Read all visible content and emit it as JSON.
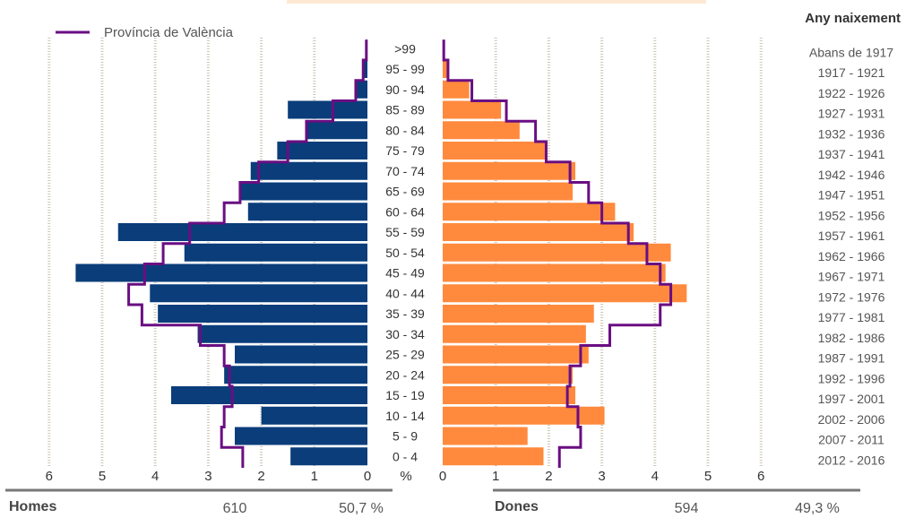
{
  "chart_data": {
    "type": "bar",
    "orientation": "horizontal",
    "subtype": "population-pyramid",
    "age_groups": [
      "0 - 4",
      "5 - 9",
      "10 - 14",
      "15 - 19",
      "20 - 24",
      "25 - 29",
      "30 - 34",
      "35 - 39",
      "40 - 44",
      "45 - 49",
      "50 - 54",
      "55 - 59",
      "60 - 64",
      "65 - 69",
      "70 - 74",
      "75 - 79",
      "80 - 84",
      "85 - 89",
      "90 - 94",
      "95 - 99",
      ">99"
    ],
    "birth_years": [
      "2012 - 2016",
      "2007 - 2011",
      "2002 - 2006",
      "1997 - 2001",
      "1992 - 1996",
      "1987 - 1991",
      "1982 - 1986",
      "1977 - 1981",
      "1972 - 1976",
      "1967 - 1971",
      "1962 - 1966",
      "1957 - 1961",
      "1952 - 1956",
      "1947 - 1951",
      "1942 - 1946",
      "1937 - 1941",
      "1932 - 1936",
      "1927 - 1931",
      "1922 - 1926",
      "1917 - 1921",
      "Abans de 1917"
    ],
    "series": [
      {
        "name": "Homes",
        "color": "#0a3d7a",
        "values": [
          1.45,
          2.5,
          2.0,
          3.7,
          2.7,
          2.5,
          3.2,
          3.95,
          4.1,
          5.5,
          3.45,
          4.7,
          2.25,
          2.4,
          2.2,
          1.7,
          1.15,
          1.5,
          0.2,
          0.1,
          0.02
        ]
      },
      {
        "name": "Dones",
        "color": "#ff8a3d",
        "values": [
          1.9,
          1.6,
          3.05,
          2.5,
          2.45,
          2.75,
          2.7,
          2.85,
          4.6,
          4.2,
          4.3,
          3.6,
          3.25,
          2.45,
          2.5,
          1.95,
          1.45,
          1.1,
          0.5,
          0.1,
          0.02
        ]
      }
    ],
    "reference": {
      "name": "Província de València",
      "color": "#6a0e82",
      "male": [
        2.35,
        2.75,
        2.7,
        2.55,
        2.6,
        2.7,
        3.15,
        4.25,
        4.5,
        4.2,
        3.85,
        3.35,
        2.7,
        2.4,
        2.05,
        1.5,
        1.15,
        0.65,
        0.22,
        0.08,
        0.02
      ],
      "female": [
        2.2,
        2.6,
        2.55,
        2.35,
        2.4,
        2.6,
        3.15,
        4.1,
        4.3,
        4.1,
        3.85,
        3.5,
        3.0,
        2.75,
        2.4,
        1.95,
        1.75,
        1.2,
        0.55,
        0.1,
        0.02
      ]
    },
    "x_ticks_left": [
      "6",
      "5",
      "4",
      "3",
      "2",
      "1",
      "0"
    ],
    "x_ticks_right": [
      "0",
      "1",
      "2",
      "3",
      "4",
      "5",
      "6"
    ],
    "x_unit": "%",
    "xlim": [
      0,
      6
    ],
    "grid": true,
    "legend_position": "top-left"
  },
  "labels": {
    "legend": "Província de València",
    "right_title": "Any naixement",
    "unit": "%"
  },
  "footer": {
    "male_label": "Homes",
    "male_count": "610",
    "male_pct": "50,7 %",
    "female_label": "Dones",
    "female_count": "594",
    "female_pct": "49,3 %"
  }
}
